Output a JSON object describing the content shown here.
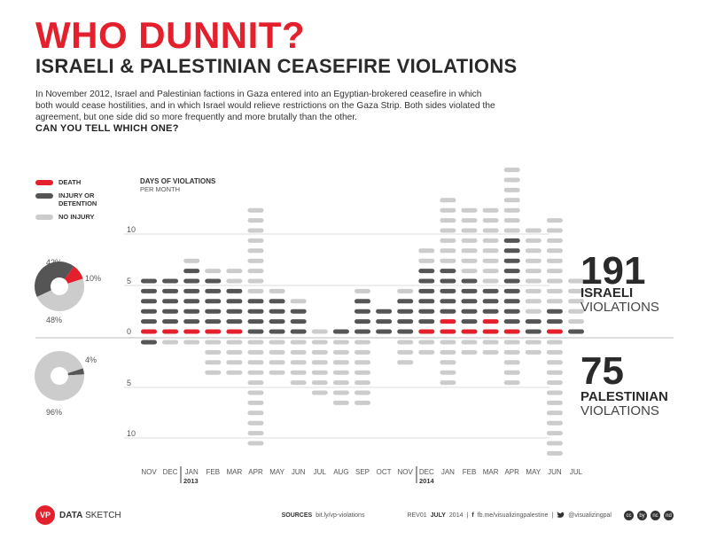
{
  "header": {
    "title": "WHO DUNNIT?",
    "subtitle": "ISRAELI & PALESTINIAN CEASEFIRE VIOLATIONS",
    "intro": "In November 2012, Israel and Palestinian factions in Gaza entered into an Egyptian-brokered ceasefire in which both would cease hostilities, and in which Israel would relieve restrictions on the Gaza Strip.  Both sides violated the agreement, but one side did so more frequently and more brutally than the other.",
    "question": "CAN YOU TELL WHICH ONE?"
  },
  "legend": {
    "items": [
      {
        "label": "DEATH",
        "color": "#e3202b"
      },
      {
        "label": "INJURY OR DETENTION",
        "color": "#555555"
      },
      {
        "label": "NO INJURY",
        "color": "#cccccc"
      }
    ]
  },
  "colors": {
    "death": "#e3202b",
    "injury": "#555555",
    "none": "#cccccc",
    "accent": "#e3202b"
  },
  "summary": {
    "israeli": {
      "count": "191",
      "label": "ISRAELI",
      "sub": "VIOLATIONS"
    },
    "palestinian": {
      "count": "75",
      "label": "PALESTINIAN",
      "sub": "VIOLATIONS"
    }
  },
  "footer": {
    "logo": "VP",
    "brand_bold": "DATA",
    "brand_rest": "SKETCH",
    "sources_label": "SOURCES",
    "sources_url": "bit.ly/vp-violations",
    "rev": "REV01",
    "date_bold": "JULY",
    "date_rest": "2014",
    "fb_icon": "f",
    "facebook": "fb.me/visualizingpalestine",
    "twitter_icon": "twitter-bird",
    "twitter": "@visualizingpal",
    "license_icons": [
      "cc",
      "by",
      "nc",
      "nd"
    ]
  },
  "chart_data": {
    "type": "stacked-icon-bar",
    "title": "DAYS OF VIOLATIONS",
    "subtitle": "PER MONTH",
    "categories": [
      "NOV",
      "DEC",
      "JAN",
      "FEB",
      "MAR",
      "APR",
      "MAY",
      "JUN",
      "JUL",
      "AUG",
      "SEP",
      "OCT",
      "NOV",
      "DEC",
      "JAN",
      "FEB",
      "MAR",
      "APR",
      "MAY",
      "JUN",
      "JUL"
    ],
    "year_labels": [
      {
        "label": "2013",
        "index": 2
      },
      {
        "label": "2014",
        "index": 14
      }
    ],
    "israeli_ticks": [
      "0",
      "5",
      "10"
    ],
    "palestinian_ticks": [
      "5",
      "10"
    ],
    "israeli": {
      "death": [
        1,
        1,
        1,
        1,
        1,
        0,
        0,
        0,
        0,
        0,
        0,
        0,
        0,
        1,
        2,
        1,
        2,
        1,
        0,
        1,
        0
      ],
      "injury": [
        5,
        5,
        6,
        5,
        4,
        4,
        4,
        3,
        0,
        1,
        4,
        3,
        4,
        6,
        5,
        5,
        3,
        9,
        2,
        2,
        1
      ],
      "none": [
        0,
        0,
        1,
        1,
        2,
        9,
        1,
        1,
        1,
        0,
        1,
        0,
        1,
        2,
        7,
        7,
        8,
        7,
        9,
        9,
        5
      ]
    },
    "palestinian": {
      "death": [
        0,
        0,
        0,
        0,
        0,
        0,
        0,
        0,
        0,
        0,
        0,
        0,
        0,
        0,
        0,
        0,
        0,
        0,
        0,
        0,
        0
      ],
      "injury": [
        1,
        0,
        0,
        0,
        0,
        0,
        0,
        0,
        0,
        0,
        0,
        0,
        0,
        0,
        0,
        0,
        0,
        0,
        0,
        0,
        0
      ],
      "none": [
        0,
        1,
        1,
        4,
        4,
        11,
        4,
        5,
        6,
        7,
        7,
        0,
        3,
        2,
        5,
        2,
        2,
        5,
        2,
        12,
        0
      ]
    },
    "donut_israeli": [
      {
        "label": "10%",
        "value": 10,
        "color": "#e3202b"
      },
      {
        "label": "48%",
        "value": 48,
        "color": "#cccccc"
      },
      {
        "label": "42%",
        "value": 42,
        "color": "#555555"
      }
    ],
    "donut_palestinian": [
      {
        "label": "4%",
        "value": 4,
        "color": "#555555"
      },
      {
        "label": "96%",
        "value": 96,
        "color": "#cccccc"
      }
    ]
  }
}
